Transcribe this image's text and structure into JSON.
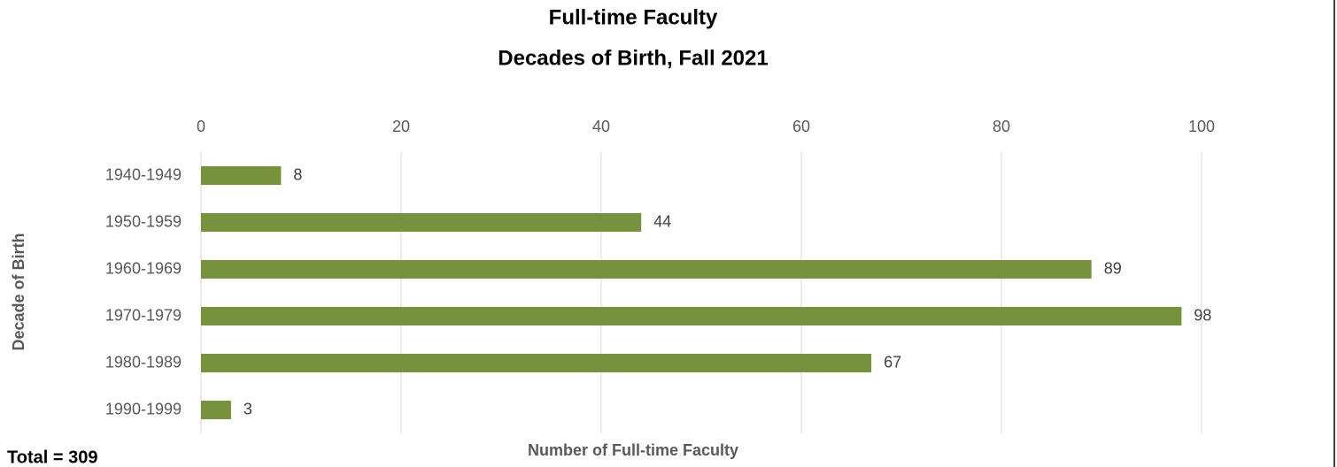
{
  "chart_data": {
    "type": "bar",
    "orientation": "horizontal",
    "title": [
      "Full-time Faculty",
      "Decades of Birth, Fall 2021"
    ],
    "categories": [
      "1940-1949",
      "1950-1959",
      "1960-1969",
      "1970-1979",
      "1980-1989",
      "1990-1999"
    ],
    "values": [
      8,
      44,
      89,
      98,
      67,
      3
    ],
    "color": "#76923c",
    "xlim": [
      0,
      110
    ],
    "xticks": [
      0,
      20,
      40,
      60,
      80,
      100
    ],
    "x_axis_label": "Number of Full-time Faculty",
    "y_axis_label": "Decade of Birth",
    "annotation": "Total = 309",
    "grid": true
  }
}
